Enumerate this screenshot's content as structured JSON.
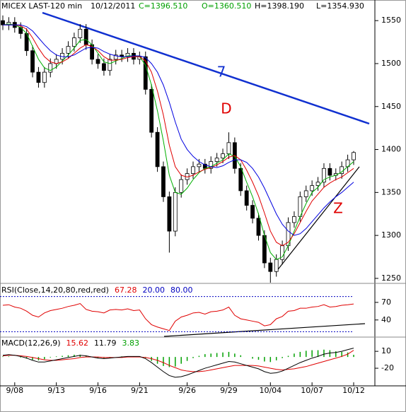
{
  "header": {
    "symbol": "MICEX LAST-120 min",
    "date": "10/12/2011",
    "close": "C=1396.510",
    "open": "O=1360.510",
    "high": "H=1398.190",
    "low": "L=1354.930"
  },
  "chart_data": [
    {
      "type": "candlestick",
      "categories": [
        null,
        null,
        "9/08",
        null,
        null,
        null,
        null,
        null,
        null,
        "9/13",
        null,
        null,
        null,
        null,
        null,
        null,
        "9/16",
        null,
        null,
        null,
        null,
        null,
        null,
        "9/21",
        null,
        null,
        null,
        null,
        null,
        null,
        null,
        "9/26",
        null,
        null,
        null,
        null,
        null,
        null,
        "9/29",
        null,
        null,
        null,
        null,
        null,
        null,
        "10/04",
        null,
        null,
        null,
        null,
        null,
        null,
        "10/07",
        null,
        null,
        null,
        null,
        null,
        null,
        "10/12"
      ],
      "open": [
        1550,
        1545,
        1548,
        1542,
        1535,
        1515,
        1490,
        1478,
        1490,
        1500,
        1505,
        1512,
        1520,
        1530,
        1540,
        1522,
        1505,
        1500,
        1492,
        1505,
        1510,
        1508,
        1512,
        1505,
        1508,
        1470,
        1420,
        1380,
        1345,
        1305,
        1350,
        1365,
        1372,
        1380,
        1383,
        1378,
        1386,
        1390,
        1395,
        1408,
        1378,
        1352,
        1335,
        1320,
        1300,
        1268,
        1258,
        1272,
        1288,
        1315,
        1322,
        1345,
        1352,
        1358,
        1362,
        1378,
        1370,
        1372,
        1380,
        1388
      ],
      "high": [
        1556,
        1554,
        1554,
        1548,
        1541,
        1521,
        1496,
        1496,
        1506,
        1511,
        1518,
        1526,
        1536,
        1546,
        1546,
        1528,
        1511,
        1506,
        1511,
        1516,
        1516,
        1518,
        1518,
        1514,
        1514,
        1476,
        1426,
        1386,
        1351,
        1356,
        1371,
        1378,
        1386,
        1389,
        1389,
        1392,
        1396,
        1401,
        1420,
        1414,
        1384,
        1358,
        1341,
        1326,
        1306,
        1274,
        1278,
        1294,
        1321,
        1328,
        1351,
        1358,
        1364,
        1368,
        1384,
        1384,
        1378,
        1386,
        1394,
        1398.19
      ],
      "low": [
        1539,
        1539,
        1536,
        1529,
        1509,
        1484,
        1472,
        1472,
        1484,
        1494,
        1499,
        1506,
        1514,
        1524,
        1516,
        1499,
        1494,
        1486,
        1486,
        1499,
        1502,
        1502,
        1499,
        1499,
        1464,
        1414,
        1374,
        1339,
        1280,
        1299,
        1344,
        1359,
        1366,
        1374,
        1372,
        1372,
        1380,
        1384,
        1389,
        1372,
        1346,
        1329,
        1314,
        1294,
        1262,
        1245,
        1252,
        1266,
        1282,
        1309,
        1316,
        1339,
        1346,
        1352,
        1356,
        1364,
        1364,
        1366,
        1374,
        1382
      ],
      "close": [
        1545,
        1548,
        1542,
        1535,
        1515,
        1490,
        1478,
        1490,
        1500,
        1505,
        1512,
        1520,
        1530,
        1540,
        1522,
        1505,
        1500,
        1492,
        1505,
        1510,
        1508,
        1512,
        1505,
        1508,
        1470,
        1420,
        1380,
        1345,
        1305,
        1350,
        1365,
        1372,
        1380,
        1383,
        1378,
        1386,
        1390,
        1395,
        1408,
        1378,
        1352,
        1335,
        1320,
        1300,
        1268,
        1258,
        1272,
        1288,
        1315,
        1322,
        1345,
        1352,
        1358,
        1362,
        1378,
        1370,
        1372,
        1380,
        1388,
        1396.51
      ],
      "series": [
        {
          "color": "#00b000",
          "values": [
            1545,
            1546,
            1545,
            1542,
            1535,
            1520,
            1505,
            1495,
            1492,
            1496,
            1503,
            1510,
            1518,
            1527,
            1528,
            1522,
            1512,
            1502,
            1500,
            1503,
            1506,
            1509,
            1509,
            1508,
            1498,
            1475,
            1445,
            1410,
            1370,
            1350,
            1348,
            1355,
            1365,
            1373,
            1378,
            1380,
            1384,
            1388,
            1395,
            1392,
            1380,
            1362,
            1345,
            1325,
            1300,
            1280,
            1272,
            1275,
            1288,
            1305,
            1322,
            1337,
            1350,
            1356,
            1365,
            1368,
            1370,
            1374,
            1380,
            1386
          ]
        },
        {
          "color": "#e00000",
          "values": [
            1545,
            1545,
            1545,
            1544,
            1540,
            1530,
            1518,
            1508,
            1502,
            1500,
            1502,
            1506,
            1512,
            1518,
            1522,
            1520,
            1515,
            1508,
            1504,
            1504,
            1505,
            1507,
            1508,
            1508,
            1503,
            1490,
            1468,
            1440,
            1405,
            1380,
            1370,
            1368,
            1370,
            1374,
            1377,
            1379,
            1382,
            1386,
            1391,
            1393,
            1388,
            1376,
            1362,
            1346,
            1326,
            1305,
            1292,
            1288,
            1292,
            1302,
            1315,
            1328,
            1340,
            1348,
            1356,
            1361,
            1365,
            1368,
            1373,
            1378
          ]
        },
        {
          "color": "#0000e0",
          "values": [
            1545,
            1545,
            1545,
            1545,
            1543,
            1538,
            1530,
            1522,
            1515,
            1510,
            1508,
            1508,
            1510,
            1514,
            1518,
            1519,
            1518,
            1514,
            1511,
            1509,
            1508,
            1508,
            1509,
            1509,
            1507,
            1500,
            1490,
            1475,
            1455,
            1432,
            1412,
            1400,
            1392,
            1386,
            1382,
            1380,
            1379,
            1381,
            1385,
            1388,
            1388,
            1385,
            1378,
            1368,
            1355,
            1340,
            1325,
            1313,
            1305,
            1300,
            1302,
            1308,
            1316,
            1324,
            1332,
            1339,
            1345,
            1350,
            1356,
            1362
          ]
        }
      ],
      "annotations": [
        "7",
        "D",
        "Z"
      ],
      "ylim": [
        1245,
        1574
      ],
      "yticks": [
        1250,
        1300,
        1350,
        1400,
        1450,
        1500,
        1550
      ]
    },
    {
      "type": "line",
      "title": "RSI(Close,14,20,80,red,red)",
      "series": [
        {
          "color": "#e00000",
          "values": [
            65,
            66,
            62,
            60,
            55,
            48,
            45,
            52,
            56,
            58,
            60,
            63,
            65,
            68,
            58,
            55,
            54,
            52,
            57,
            58,
            57,
            59,
            56,
            57,
            42,
            32,
            28,
            25,
            22,
            38,
            45,
            48,
            52,
            53,
            50,
            54,
            55,
            57,
            62,
            48,
            42,
            40,
            38,
            36,
            30,
            32,
            42,
            46,
            55,
            56,
            60,
            60,
            62,
            63,
            66,
            62,
            63,
            65,
            66,
            67.28
          ]
        }
      ],
      "levels": [
        {
          "value": 20,
          "label": "20.00"
        },
        {
          "value": 80,
          "label": "80.00"
        }
      ],
      "level_color": "#0000c0",
      "ylim": [
        12,
        100
      ],
      "yticks": [
        40,
        70
      ]
    },
    {
      "type": "macd",
      "title": "MACD(12,26,9)",
      "series": [
        {
          "color": "#000000",
          "values": [
            3,
            4,
            3,
            1,
            -2,
            -6,
            -9,
            -9,
            -7,
            -5,
            -3,
            -1,
            1,
            3,
            2,
            0,
            -2,
            -3,
            -2,
            -1,
            0,
            1,
            1,
            1,
            -3,
            -10,
            -18,
            -26,
            -33,
            -36,
            -35,
            -32,
            -28,
            -24,
            -20,
            -17,
            -14,
            -11,
            -8,
            -9,
            -12,
            -15,
            -18,
            -21,
            -26,
            -29,
            -28,
            -25,
            -20,
            -15,
            -10,
            -6,
            -2,
            1,
            5,
            7,
            8,
            10,
            13,
            15.62
          ]
        },
        {
          "color": "#e00000",
          "values": [
            2,
            3,
            3,
            2,
            1,
            -1,
            -3,
            -5,
            -6,
            -6,
            -5,
            -4,
            -3,
            -1,
            0,
            0,
            0,
            -1,
            -1,
            -1,
            -1,
            0,
            0,
            0,
            -1,
            -3,
            -6,
            -10,
            -15,
            -19,
            -23,
            -25,
            -26,
            -26,
            -25,
            -23,
            -21,
            -19,
            -17,
            -15,
            -15,
            -15,
            -15,
            -16,
            -18,
            -20,
            -22,
            -23,
            -22,
            -21,
            -19,
            -17,
            -14,
            -11,
            -8,
            -5,
            -2,
            1,
            5,
            11.79
          ]
        },
        {
          "color": "#00a000",
          "values": [
            1,
            1,
            0,
            -1,
            -3,
            -5,
            -6,
            -4,
            -1,
            1,
            2,
            3,
            4,
            4,
            2,
            0,
            -2,
            -2,
            -1,
            0,
            1,
            1,
            1,
            1,
            -2,
            -7,
            -12,
            -16,
            -18,
            -17,
            -12,
            -7,
            -2,
            2,
            5,
            6,
            7,
            8,
            9,
            6,
            3,
            0,
            -3,
            -5,
            -8,
            -9,
            -6,
            -2,
            2,
            6,
            9,
            11,
            12,
            12,
            13,
            12,
            10,
            9,
            8,
            3.83
          ]
        }
      ],
      "ylim": [
        -50,
        34
      ],
      "yticks": [
        -20,
        10
      ]
    }
  ]
}
